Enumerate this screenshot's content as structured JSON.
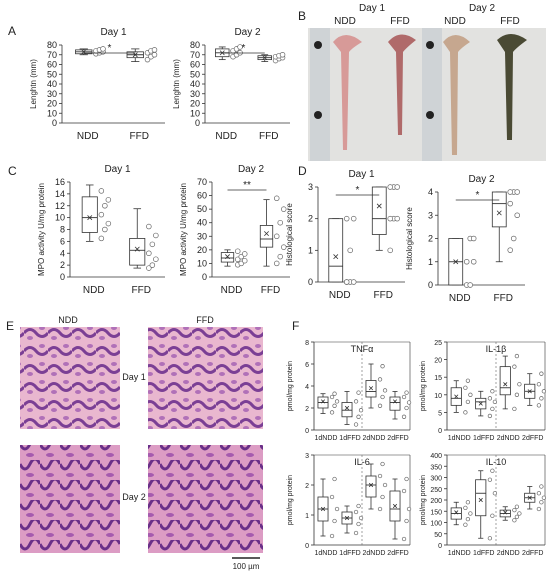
{
  "panel_labels": [
    "A",
    "B",
    "C",
    "D",
    "E",
    "F"
  ],
  "photo_B": {
    "days": [
      "Day 1",
      "Day 2"
    ],
    "groups": [
      "NDD",
      "FFD",
      "NDD",
      "FFD"
    ]
  },
  "histology_E": {
    "groups": [
      "NDD",
      "FFD"
    ],
    "days": [
      "Day 1",
      "Day 2"
    ],
    "scale_bar": "100 µm"
  },
  "chart_data": [
    {
      "type": "box",
      "title": "Day 1",
      "ylabel": "Lenghtn (mm)",
      "categories": [
        "NDD",
        "FFD"
      ],
      "boxes": [
        {
          "min": 70,
          "q1": 71,
          "median": 73,
          "q3": 75,
          "max": 76,
          "mean": 73,
          "points": [
            71,
            72,
            73,
            74,
            75,
            76
          ]
        },
        {
          "min": 63,
          "q1": 67,
          "median": 70,
          "q3": 73,
          "max": 76,
          "mean": 70,
          "points": [
            65,
            68,
            70,
            72,
            74,
            75
          ]
        }
      ],
      "ylim": [
        0,
        80
      ],
      "yticks": [
        0,
        10,
        20,
        30,
        40,
        50,
        60,
        70,
        80
      ],
      "annotations": [
        "*"
      ]
    },
    {
      "type": "box",
      "title": "Day 2",
      "ylabel": "Lenghtn (mm)",
      "categories": [
        "NDD",
        "FFD"
      ],
      "boxes": [
        {
          "min": 65,
          "q1": 68,
          "median": 72,
          "q3": 76,
          "max": 78,
          "mean": 72,
          "points": [
            68,
            70,
            72,
            74,
            76,
            78
          ]
        },
        {
          "min": 63,
          "q1": 65,
          "median": 67,
          "q3": 69,
          "max": 70,
          "mean": 67,
          "points": [
            64,
            66,
            67,
            68,
            69,
            70
          ]
        }
      ],
      "ylim": [
        0,
        80
      ],
      "yticks": [
        0,
        10,
        20,
        30,
        40,
        50,
        60,
        70,
        80
      ],
      "annotations": [
        "*"
      ]
    },
    {
      "type": "box",
      "title": "Day 1",
      "ylabel": "MPO activity U/mg protein",
      "categories": [
        "NDD",
        "FFD"
      ],
      "boxes": [
        {
          "min": 6,
          "q1": 7.5,
          "median": 10,
          "q3": 13.5,
          "max": 15.5,
          "mean": 10,
          "points": [
            6.5,
            8,
            9,
            10.5,
            12,
            13,
            14.5
          ]
        },
        {
          "min": 1.5,
          "q1": 2,
          "median": 4.5,
          "q3": 6.5,
          "max": 11.5,
          "mean": 4.7,
          "points": [
            1.5,
            2,
            3,
            4,
            5.5,
            7,
            8.5
          ]
        }
      ],
      "ylim": [
        0,
        16
      ],
      "yticks": [
        0,
        2,
        4,
        6,
        8,
        10,
        12,
        14,
        16
      ]
    },
    {
      "type": "box",
      "title": "Day 2",
      "ylabel": "MPO activity U/mg protein",
      "categories": [
        "NDD",
        "FFD"
      ],
      "boxes": [
        {
          "min": 8,
          "q1": 11,
          "median": 14,
          "q3": 18,
          "max": 20,
          "mean": 15,
          "points": [
            9,
            10,
            12,
            13,
            15,
            17,
            19
          ]
        },
        {
          "min": 8,
          "q1": 22,
          "median": 28,
          "q3": 38,
          "max": 57,
          "mean": 32,
          "points": [
            10,
            15,
            22,
            30,
            40,
            50,
            58
          ]
        }
      ],
      "ylim": [
        0,
        70
      ],
      "yticks": [
        0,
        10,
        20,
        30,
        40,
        50,
        60,
        70
      ],
      "annotations": [
        "**"
      ]
    },
    {
      "type": "box",
      "title": "Day 1",
      "ylabel": "Histological score",
      "categories": [
        "NDD",
        "FFD"
      ],
      "boxes": [
        {
          "min": 0,
          "q1": 0,
          "median": 0.5,
          "q3": 2,
          "max": 2,
          "mean": 0.8,
          "points": [
            0,
            0,
            0,
            0,
            1,
            2,
            2
          ]
        },
        {
          "min": 1,
          "q1": 1.5,
          "median": 2,
          "q3": 3,
          "max": 3,
          "mean": 2.4,
          "points": [
            1,
            2,
            2,
            2,
            3,
            3,
            3
          ]
        }
      ],
      "ylim": [
        0,
        3
      ],
      "yticks": [
        0,
        1,
        2,
        3
      ],
      "annotations": [
        "*"
      ]
    },
    {
      "type": "box",
      "title": "Day 2",
      "ylabel": "Histological score",
      "categories": [
        "NDD",
        "FFD"
      ],
      "boxes": [
        {
          "min": 0,
          "q1": 0,
          "median": 1,
          "q3": 2,
          "max": 2,
          "mean": 1,
          "points": [
            0,
            0,
            1,
            1,
            2,
            2
          ]
        },
        {
          "min": 1,
          "q1": 2.5,
          "median": 3.5,
          "q3": 4,
          "max": 4,
          "mean": 3.1,
          "points": [
            1.5,
            2,
            3,
            3.5,
            4,
            4,
            4
          ]
        }
      ],
      "ylim": [
        0,
        4
      ],
      "yticks": [
        0,
        1,
        2,
        3,
        4
      ],
      "annotations": [
        "*"
      ]
    },
    {
      "type": "box",
      "title": "TNFα",
      "ylabel": "pmol/mg protein",
      "categories": [
        "1dNDD",
        "1dFFD",
        "2dNDD",
        "2dFFD"
      ],
      "boxes": [
        {
          "min": 1.5,
          "q1": 2,
          "median": 2.5,
          "q3": 3,
          "max": 3.3,
          "mean": 2.6,
          "points": [
            1.6,
            2.2,
            2.6,
            3,
            3.3
          ]
        },
        {
          "min": 0.5,
          "q1": 1.2,
          "median": 1.8,
          "q3": 2.5,
          "max": 3.5,
          "mean": 2,
          "points": [
            0.5,
            1.2,
            1.8,
            2.6,
            3.4
          ]
        },
        {
          "min": 2,
          "q1": 3,
          "median": 3.5,
          "q3": 4.5,
          "max": 6,
          "mean": 3.8,
          "points": [
            2.2,
            3,
            3.6,
            4.6,
            5.8
          ]
        },
        {
          "min": 1,
          "q1": 1.8,
          "median": 2.5,
          "q3": 3,
          "max": 3.5,
          "mean": 2.6,
          "points": [
            1.2,
            2,
            2.5,
            3,
            3.4
          ]
        }
      ],
      "ylim": [
        0,
        8
      ],
      "yticks": [
        0,
        2,
        4,
        6,
        8
      ]
    },
    {
      "type": "box",
      "title": "IL-1β",
      "ylabel": "pmol/mg protein",
      "categories": [
        "1dNDD",
        "1dFFD",
        "2dNDD",
        "2dFFD"
      ],
      "boxes": [
        {
          "min": 5,
          "q1": 7,
          "median": 9,
          "q3": 12,
          "max": 14,
          "mean": 9.5,
          "points": [
            5,
            8,
            10,
            12,
            14
          ]
        },
        {
          "min": 4,
          "q1": 6,
          "median": 8,
          "q3": 9,
          "max": 11,
          "mean": 7.5,
          "points": [
            4,
            6,
            8,
            9,
            11
          ]
        },
        {
          "min": 6,
          "q1": 10,
          "median": 12,
          "q3": 18,
          "max": 21,
          "mean": 13,
          "points": [
            6,
            10,
            13,
            18,
            21
          ]
        },
        {
          "min": 7,
          "q1": 9,
          "median": 11,
          "q3": 13,
          "max": 16,
          "mean": 11,
          "points": [
            7,
            9,
            11,
            13,
            16
          ]
        }
      ],
      "ylim": [
        0,
        25
      ],
      "yticks": [
        0,
        5,
        10,
        15,
        20,
        25
      ]
    },
    {
      "type": "box",
      "title": "IL-6",
      "ylabel": "pmol/mg protein",
      "categories": [
        "1dNDD",
        "1dFFD",
        "2dNDD",
        "2dFFD"
      ],
      "boxes": [
        {
          "min": 0.3,
          "q1": 0.8,
          "median": 1.2,
          "q3": 1.6,
          "max": 2.2,
          "mean": 1.2,
          "points": [
            0.3,
            0.8,
            1.2,
            1.6,
            2.2
          ]
        },
        {
          "min": 0.4,
          "q1": 0.7,
          "median": 0.9,
          "q3": 1.1,
          "max": 1.3,
          "mean": 0.9,
          "points": [
            0.4,
            0.7,
            0.9,
            1.1,
            1.3
          ]
        },
        {
          "min": 1.2,
          "q1": 1.6,
          "median": 2,
          "q3": 2.3,
          "max": 2.7,
          "mean": 2,
          "points": [
            1.2,
            1.6,
            2,
            2.3,
            2.7
          ]
        },
        {
          "min": 0.2,
          "q1": 0.8,
          "median": 1.2,
          "q3": 1.8,
          "max": 2.2,
          "mean": 1.3,
          "points": [
            0.2,
            0.8,
            1.2,
            1.8,
            2.2
          ]
        }
      ],
      "ylim": [
        0,
        3
      ],
      "yticks": [
        0,
        1,
        2,
        3
      ]
    },
    {
      "type": "box",
      "title": "IL-10",
      "ylabel": "pmol/mg protein",
      "categories": [
        "1dNDD",
        "1dFFD",
        "2dNDD",
        "2dFFD"
      ],
      "boxes": [
        {
          "min": 90,
          "q1": 115,
          "median": 140,
          "q3": 165,
          "max": 190,
          "mean": 145,
          "points": [
            90,
            115,
            140,
            165,
            190
          ]
        },
        {
          "min": 30,
          "q1": 130,
          "median": 230,
          "q3": 290,
          "max": 330,
          "mean": 200,
          "points": [
            30,
            130,
            230,
            290,
            330
          ]
        },
        {
          "min": 110,
          "q1": 125,
          "median": 140,
          "q3": 155,
          "max": 170,
          "mean": 145,
          "points": [
            110,
            125,
            140,
            155,
            170
          ]
        },
        {
          "min": 160,
          "q1": 190,
          "median": 210,
          "q3": 230,
          "max": 260,
          "mean": 210,
          "points": [
            160,
            190,
            210,
            230,
            260
          ]
        }
      ],
      "ylim": [
        0,
        400
      ],
      "yticks": [
        0,
        50,
        100,
        150,
        200,
        250,
        300,
        350,
        400
      ]
    }
  ]
}
